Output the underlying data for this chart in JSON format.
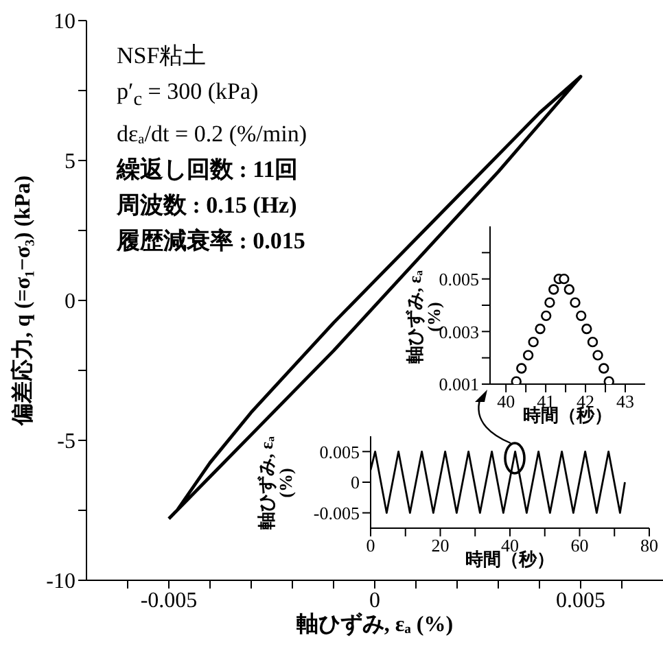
{
  "chart_data": [
    {
      "type": "line",
      "xlabel": "軸ひずみ, εₐ (%)",
      "ylabel": "偏差応力, q (=σ₁−σ₃) (kPa)",
      "color": "#000000",
      "annotations": [
        "NSF粘土",
        "p′$_{c}$ = 300 (kPa)",
        "dεₐ/dt = 0.2 (%/min)",
        "繰返し回数 : 11回",
        "周波数 : 0.15 (Hz)",
        "履歴減衰率 : 0.015"
      ],
      "x": [
        -0.005,
        -0.004,
        -0.003,
        -0.002,
        -0.001,
        0,
        0.001,
        0.002,
        0.003,
        0.004,
        0.005,
        0.004,
        0.003,
        0.002,
        0.001,
        0,
        -0.001,
        -0.002,
        -0.003,
        -0.004,
        -0.0048
      ],
      "values": [
        -7.8,
        -6.3,
        -4.8,
        -3.3,
        -1.8,
        -0.2,
        1.4,
        3.0,
        4.6,
        6.3,
        8.0,
        6.7,
        5.2,
        3.7,
        2.2,
        0.7,
        -0.8,
        -2.4,
        -4.0,
        -5.8,
        -7.5
      ],
      "xlim": [
        -0.007,
        0.007
      ],
      "ylim": [
        -10,
        10
      ],
      "xticks": [
        {
          "value": -0.006,
          "label": null
        },
        -0.005,
        {
          "value": -0.004,
          "label": null
        },
        {
          "value": -0.003,
          "label": null
        },
        {
          "value": -0.002,
          "label": null
        },
        {
          "value": -0.001,
          "label": null
        },
        0,
        {
          "value": 0.001,
          "label": null
        },
        {
          "value": 0.002,
          "label": null
        },
        {
          "value": 0.003,
          "label": null
        },
        {
          "value": 0.004,
          "label": null
        },
        0.005,
        {
          "value": 0.006,
          "label": null
        }
      ],
      "yticks": [
        -10,
        {
          "value": -7.5,
          "label": null
        },
        -5,
        {
          "value": -2.5,
          "label": null
        },
        0,
        {
          "value": 2.5,
          "label": null
        },
        5,
        {
          "value": 7.5,
          "label": null
        },
        10
      ]
    },
    {
      "type": "scatter",
      "xlabel": "時間（秒）",
      "ylabel": "軸ひずみ, εₐ (%)",
      "color": "#000000",
      "marker": "circle",
      "x": [
        40.26,
        40.39,
        40.56,
        40.69,
        40.86,
        41.01,
        41.1,
        41.2,
        41.33,
        41.46,
        41.59,
        41.74,
        41.89,
        42.03,
        42.18,
        42.31,
        42.46,
        42.59
      ],
      "values": [
        0.0011,
        0.0016,
        0.0021,
        0.0026,
        0.0031,
        0.0036,
        0.0041,
        0.0046,
        0.005,
        0.005,
        0.0046,
        0.0041,
        0.0036,
        0.0031,
        0.0026,
        0.0021,
        0.0016,
        0.0011
      ],
      "xlim": [
        39.6,
        43.5
      ],
      "ylim": [
        0.001,
        0.007
      ],
      "xticks": [
        40,
        {
          "value": 40.5,
          "label": null
        },
        41,
        {
          "value": 41.5,
          "label": null
        },
        42,
        {
          "value": 42.5,
          "label": null
        },
        43
      ],
      "yticks": [
        0.001,
        {
          "value": 0.002,
          "label": null
        },
        0.003,
        {
          "value": 0.004,
          "label": null
        },
        0.005,
        {
          "value": 0.006,
          "label": null
        }
      ]
    },
    {
      "type": "line",
      "xlabel": "時間（秒）",
      "ylabel": "軸ひずみ, εₐ (%)",
      "color": "#000000",
      "x": [
        0,
        1.3,
        4.6,
        8.0,
        11.3,
        14.7,
        18.0,
        21.4,
        24.7,
        28.1,
        31.4,
        34.8,
        38.1,
        41.5,
        44.8,
        48.2,
        51.5,
        54.9,
        58.2,
        61.6,
        64.9,
        68.3,
        71.6,
        73
      ],
      "values": [
        0.002,
        0.005,
        -0.005,
        0.005,
        -0.005,
        0.005,
        -0.005,
        0.005,
        -0.005,
        0.005,
        -0.005,
        0.005,
        -0.005,
        0.005,
        -0.005,
        0.005,
        -0.005,
        0.005,
        -0.005,
        0.005,
        -0.005,
        0.005,
        -0.005,
        0
      ],
      "xlim": [
        0,
        80
      ],
      "ylim": [
        -0.0075,
        0.0075
      ],
      "xticks": [
        0,
        {
          "value": 10,
          "label": null
        },
        20,
        {
          "value": 30,
          "label": null
        },
        40,
        {
          "value": 50,
          "label": null
        },
        60,
        {
          "value": 70,
          "label": null
        },
        80
      ],
      "yticks": [
        -0.005,
        0,
        0.005
      ]
    }
  ]
}
